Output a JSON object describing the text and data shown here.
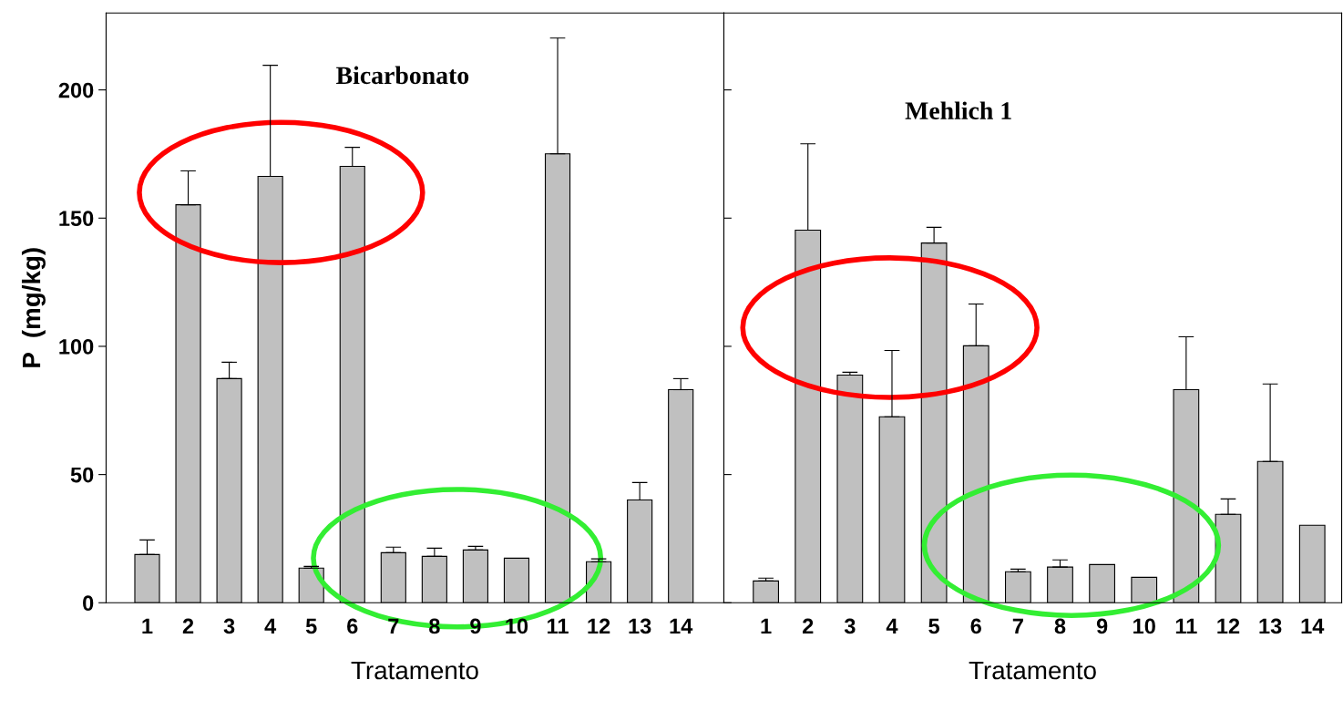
{
  "chart_data": [
    {
      "type": "bar",
      "title": "Bicarbonato",
      "xlabel": "Tratamento",
      "ylabel": "P  (mg/kg)",
      "categories": [
        "1",
        "2",
        "3",
        "4",
        "5",
        "6",
        "7",
        "8",
        "9",
        "10",
        "11",
        "12",
        "13",
        "14"
      ],
      "values": [
        18.8,
        155.2,
        87.4,
        166.3,
        13.5,
        170.2,
        19.5,
        18.1,
        20.6,
        17.4,
        175.1,
        16.0,
        40.1,
        83.1
      ],
      "errors": [
        5.7,
        13.2,
        6.4,
        43.3,
        0.7,
        7.4,
        2.2,
        3.2,
        1.4,
        null,
        45.1,
        1.1,
        6.8,
        4.3
      ],
      "color": "#c0c0c0",
      "ylim": [
        0,
        230
      ],
      "yticks": [
        0,
        50,
        100,
        150,
        200
      ],
      "grid": false
    },
    {
      "type": "bar",
      "title": "Mehlich 1",
      "xlabel": "Tratamento",
      "categories": [
        "1",
        "2",
        "3",
        "4",
        "5",
        "6",
        "7",
        "8",
        "9",
        "10",
        "11",
        "12",
        "13",
        "14"
      ],
      "values": [
        8.5,
        145.3,
        88.8,
        72.5,
        140.3,
        100.2,
        12.1,
        13.9,
        14.9,
        9.9,
        83.1,
        34.5,
        55.1,
        30.2
      ],
      "errors": [
        1.1,
        33.7,
        1.1,
        25.9,
        6.1,
        16.3,
        1.0,
        2.8,
        null,
        null,
        20.6,
        6.0,
        30.2,
        null
      ],
      "color": "#c0c0c0",
      "ylim": [
        0,
        230
      ],
      "yticks": [
        {
          "value": 0,
          "label": null
        },
        {
          "value": 50,
          "label": null
        },
        {
          "value": 100,
          "label": null
        },
        {
          "value": 150,
          "label": null
        },
        {
          "value": 200,
          "label": null
        }
      ],
      "tick_labels": "x",
      "grid": false
    }
  ]
}
